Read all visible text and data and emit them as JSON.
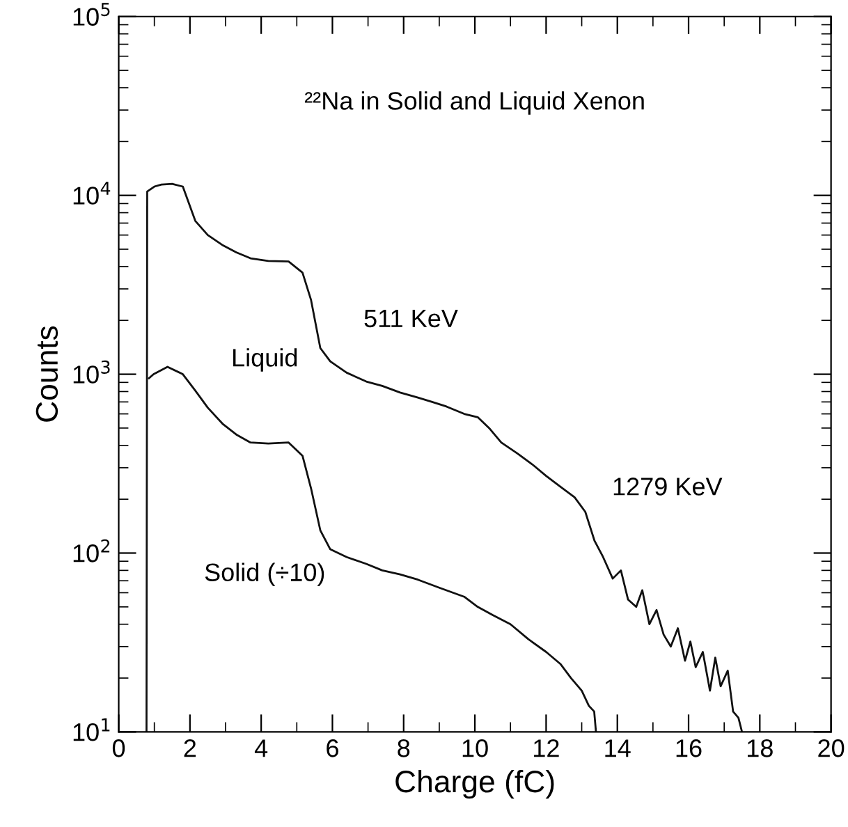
{
  "chart_data": {
    "type": "line",
    "title": "²²Na in Solid and Liquid Xenon",
    "xlabel": "Charge (fC)",
    "ylabel": "Counts",
    "log": "y",
    "xlim": [
      0,
      20
    ],
    "ylim": [
      10,
      100000
    ],
    "xticks": [
      0,
      2,
      4,
      6,
      8,
      10,
      12,
      14,
      16,
      18,
      20
    ],
    "yticks": [
      {
        "value": 10,
        "label": "10$^{1}$"
      },
      {
        "value": 100,
        "label": "10$^{2}$"
      },
      {
        "value": 1000,
        "label": "10$^{3}$"
      },
      {
        "value": 10000,
        "label": "10$^{4}$"
      },
      {
        "value": 100000,
        "label": "10$^{5}$"
      }
    ],
    "grid": false,
    "legend": false,
    "marker": "none",
    "line_style": "solid",
    "annotations": [
      "511 KeV",
      "1279 KeV"
    ],
    "series": [
      {
        "name": "Liquid",
        "color": "#111111",
        "x": [
          0.78,
          0.8,
          1.0,
          1.2,
          1.5,
          1.8,
          2.15,
          2.5,
          2.93,
          3.3,
          3.7,
          4.2,
          4.77,
          5.16,
          5.4,
          5.66,
          5.94,
          6.4,
          6.95,
          7.4,
          7.9,
          8.4,
          8.8,
          9.2,
          9.7,
          10.08,
          10.4,
          10.74,
          11.2,
          11.64,
          12.0,
          12.4,
          12.8,
          13.1,
          13.36,
          13.6,
          13.87,
          14.1,
          14.3,
          14.53,
          14.7,
          14.9,
          15.1,
          15.3,
          15.5,
          15.7,
          15.9,
          16.05,
          16.2,
          16.4,
          16.6,
          16.75,
          16.9,
          17.1,
          17.25,
          17.4,
          17.5
        ],
        "values": [
          10,
          10500,
          11200,
          11500,
          11600,
          11200,
          7200,
          6000,
          5250,
          4800,
          4450,
          4300,
          4270,
          3700,
          2600,
          1400,
          1180,
          1020,
          910,
          860,
          790,
          740,
          700,
          660,
          600,
          575,
          500,
          415,
          360,
          310,
          270,
          235,
          205,
          170,
          117,
          95,
          72,
          80,
          55,
          50,
          62,
          40,
          48,
          35,
          30,
          38,
          25,
          32,
          23,
          28,
          17,
          26,
          18,
          22,
          13,
          12,
          10
        ]
      },
      {
        "name": "Solid (÷10)",
        "color": "#111111",
        "x": [
          0.85,
          0.98,
          1.37,
          1.8,
          2.15,
          2.5,
          2.93,
          3.3,
          3.7,
          4.2,
          4.77,
          5.16,
          5.4,
          5.66,
          5.94,
          6.4,
          6.95,
          7.4,
          7.9,
          8.4,
          9.0,
          9.7,
          10.08,
          10.5,
          11.0,
          11.5,
          12.0,
          12.4,
          12.7,
          13.0,
          13.2,
          13.35,
          13.4
        ],
        "values": [
          950,
          1000,
          1100,
          1000,
          810,
          650,
          525,
          460,
          415,
          410,
          415,
          350,
          230,
          134,
          105,
          95,
          87,
          80,
          76,
          71,
          64,
          57,
          50,
          45,
          40,
          33,
          28,
          24,
          20,
          17,
          14,
          13,
          10
        ]
      }
    ]
  }
}
